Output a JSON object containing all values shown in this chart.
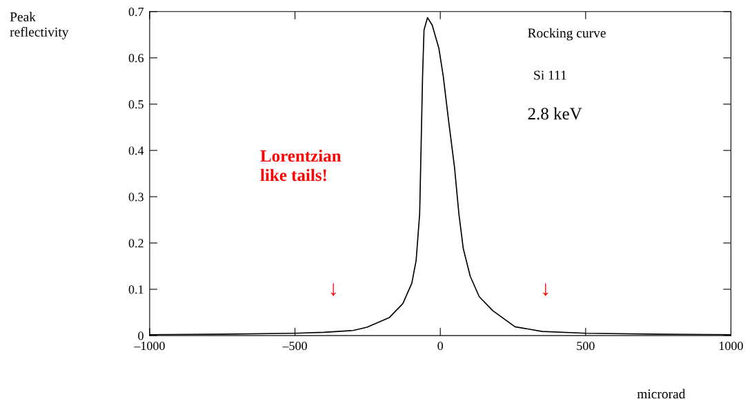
{
  "chart_data": {
    "type": "line",
    "xlabel": "microrad",
    "ylabel": "Peak\nreflectivity",
    "x": [
      -1000,
      -750,
      -500,
      -400,
      -300,
      -252,
      -175,
      -129,
      -98,
      -83,
      -71,
      -66,
      -61,
      -56,
      -44,
      -28,
      -5,
      10,
      29,
      49,
      64,
      79,
      103,
      134,
      180,
      257,
      350,
      500,
      750,
      1000
    ],
    "series": [
      {
        "color": "#000000",
        "values": [
          0.002,
          0.003,
          0.005,
          0.007,
          0.011,
          0.018,
          0.039,
          0.069,
          0.113,
          0.163,
          0.263,
          0.41,
          0.56,
          0.66,
          0.687,
          0.671,
          0.621,
          0.561,
          0.462,
          0.363,
          0.263,
          0.188,
          0.128,
          0.084,
          0.054,
          0.019,
          0.009,
          0.005,
          0.003,
          0.002
        ]
      }
    ],
    "xlim": [
      -1000,
      1000
    ],
    "ylim": [
      0,
      0.7
    ],
    "xticks": [
      {
        "value": -1000,
        "label": "–1000"
      },
      {
        "value": -500,
        "label": "–500"
      },
      0,
      500,
      1000
    ],
    "yticks": [
      0,
      0.1,
      0.2,
      0.3,
      0.4,
      0.5,
      0.6,
      0.7
    ],
    "grid": false,
    "legend": false,
    "marker": "none",
    "line_style": "solid",
    "annotations": [
      "Rocking curve",
      "Si 111",
      "2.8 keV",
      "Lorentzian\nlike tails!",
      "↓",
      "↓"
    ]
  }
}
